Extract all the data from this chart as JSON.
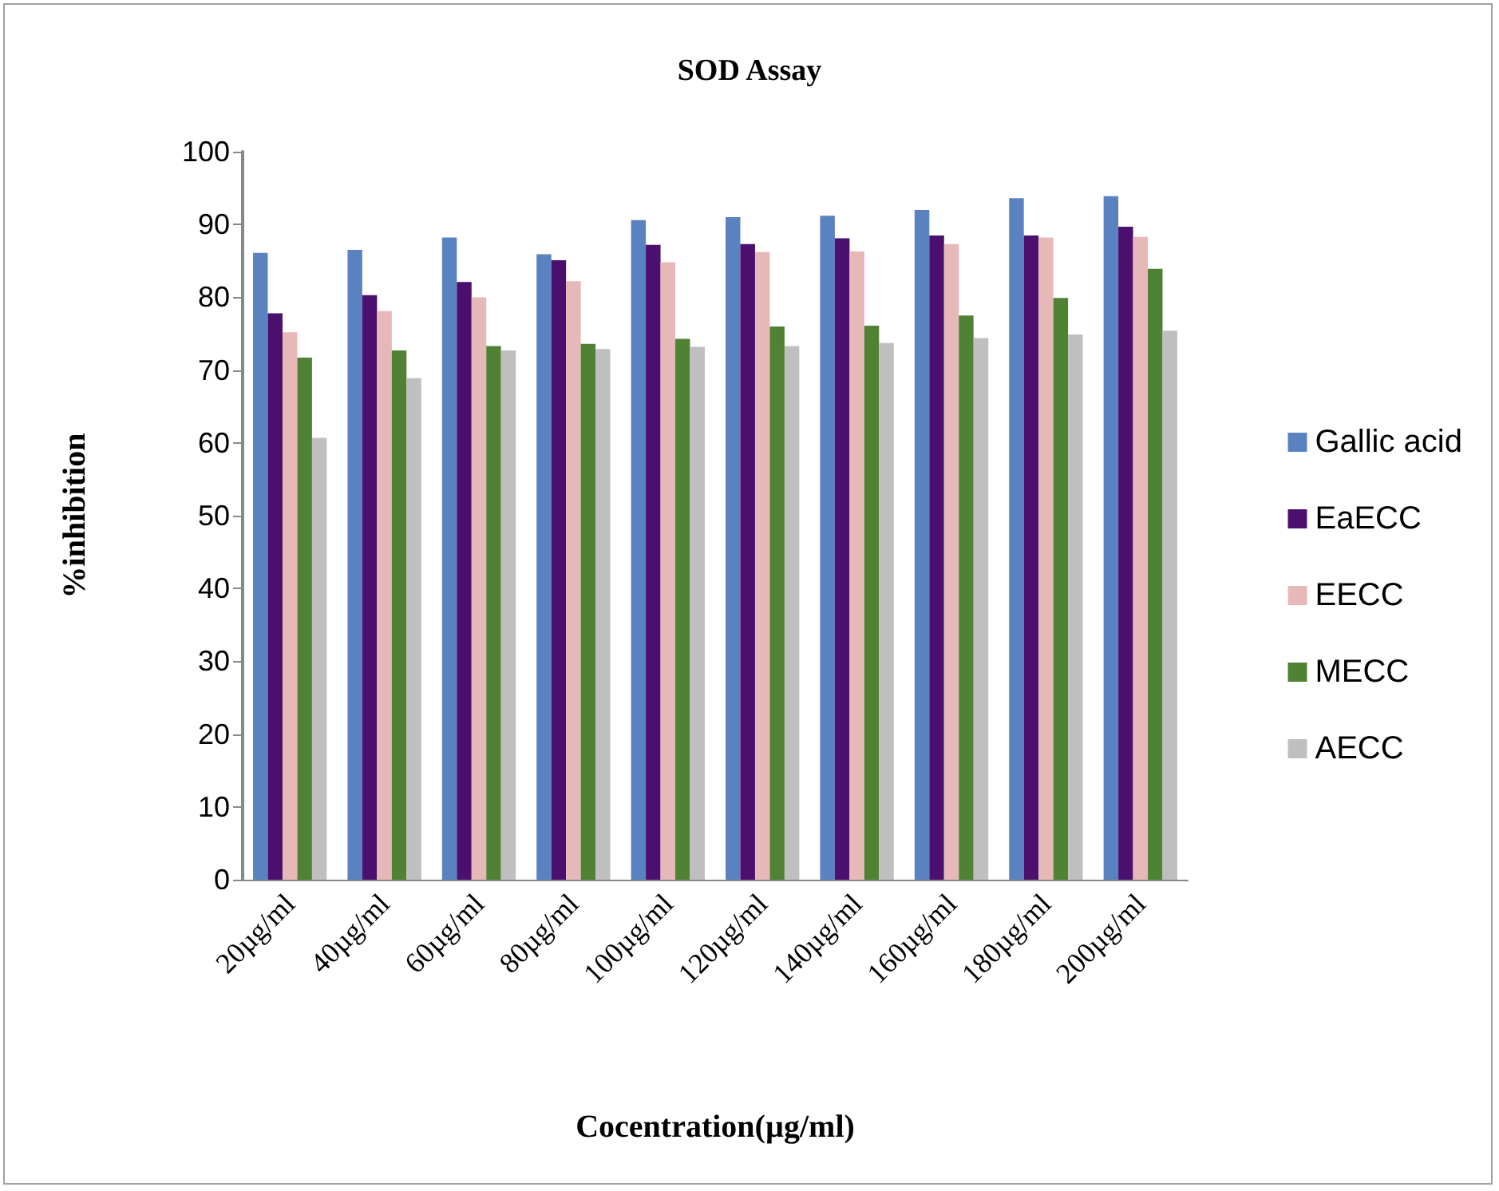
{
  "chart_data": {
    "type": "bar",
    "title": "SOD Assay",
    "xlabel": "Cocentration(µg/ml)",
    "ylabel": "%inhibition",
    "categories": [
      "20µg/ml",
      "40µg/ml",
      "60µg/ml",
      "80µg/ml",
      "100µg/ml",
      "120µg/ml",
      "140µg/ml",
      "160µg/ml",
      "180µg/ml",
      "200µg/ml"
    ],
    "series": [
      {
        "name": "Gallic acid",
        "color": "#5b82c0",
        "values": [
          86.1,
          86.5,
          88.2,
          85.9,
          90.6,
          91.0,
          91.2,
          92.0,
          93.6,
          93.9
        ]
      },
      {
        "name": "EaECC",
        "color": "#4b0f6e",
        "values": [
          77.8,
          80.3,
          82.1,
          85.1,
          87.2,
          87.3,
          88.1,
          88.5,
          88.5,
          89.7
        ]
      },
      {
        "name": "EECC",
        "color": "#e6b9b8",
        "values": [
          75.2,
          78.1,
          80.0,
          82.2,
          84.8,
          86.2,
          86.3,
          87.3,
          88.2,
          88.3
        ]
      },
      {
        "name": "MECC",
        "color": "#4f8232",
        "values": [
          71.7,
          72.7,
          73.3,
          73.6,
          74.3,
          76.0,
          76.1,
          77.5,
          79.9,
          83.9
        ]
      },
      {
        "name": "AECC",
        "color": "#bfbfbf",
        "values": [
          60.7,
          68.9,
          72.7,
          72.9,
          73.2,
          73.3,
          73.7,
          74.4,
          74.9,
          75.4
        ]
      }
    ],
    "ylim": [
      0,
      100
    ],
    "yticks": [
      0,
      10,
      20,
      30,
      40,
      50,
      60,
      70,
      80,
      90,
      100
    ],
    "grid": false,
    "legend": "right"
  }
}
